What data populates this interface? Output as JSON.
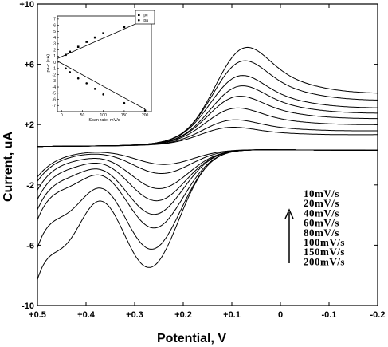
{
  "chart_data": [
    {
      "type": "line",
      "xlabel": "Potential, V",
      "ylabel": "Current, uA",
      "xlim": [
        0.5,
        -0.2
      ],
      "ylim": [
        -10,
        10
      ],
      "x_ticks": [
        {
          "value": 0.5,
          "label": "+0.5"
        },
        {
          "value": 0.4,
          "label": "+0.4"
        },
        {
          "value": 0.3,
          "label": "+0.3"
        },
        {
          "value": 0.2,
          "label": "+0.2"
        },
        {
          "value": 0.1,
          "label": "+0.1"
        },
        {
          "value": 0.0,
          "label": "0"
        },
        {
          "value": -0.1,
          "label": "-0.1"
        },
        {
          "value": -0.2,
          "label": "-0.2"
        }
      ],
      "y_ticks": [
        {
          "value": 10,
          "label": "+10"
        },
        {
          "value": 6,
          "label": "+6"
        },
        {
          "value": 2,
          "label": "+2"
        },
        {
          "value": -2,
          "label": "-2"
        },
        {
          "value": -6,
          "label": "-6"
        },
        {
          "value": -10,
          "label": "-10"
        }
      ],
      "grid": false,
      "annotation_labels": [
        "10mV/s",
        "20mV/s",
        "40mV/s",
        "60mV/s",
        "80mV/s",
        "100mV/s",
        "150mV/s",
        "200mV/s"
      ],
      "arrow_direction": "up",
      "curve_params": {
        "x": [
          0.5,
          0.45,
          0.4,
          0.35,
          0.3,
          0.25,
          0.2,
          0.15,
          0.1,
          0.05,
          0.0,
          -0.05,
          -0.1,
          -0.15,
          -0.2
        ],
        "scan_rates": [
          10,
          20,
          40,
          60,
          80,
          100,
          150,
          200
        ],
        "cathodic_peak_current": [
          1.2,
          1.7,
          2.5,
          3.3,
          4.0,
          4.7,
          5.7,
          6.6
        ],
        "cathodic_peak_potential": [
          0.11,
          0.105,
          0.1,
          0.095,
          0.09,
          0.09,
          0.085,
          0.08
        ],
        "anodic_peak_current": [
          -1.0,
          -1.6,
          -2.6,
          -3.4,
          -4.3,
          -5.2,
          -6.6,
          -7.8
        ],
        "anodic_peak_potential": [
          0.24,
          0.245,
          0.25,
          0.255,
          0.26,
          0.26,
          0.265,
          0.27
        ]
      }
    },
    {
      "type": "scatter",
      "xlabel": "Scan rate, mV/s",
      "ylabel": "Ipa-c (uA)",
      "xlim": [
        -10,
        215
      ],
      "ylim": [
        -8,
        7.5
      ],
      "x_ticks": [
        0,
        50,
        100,
        150,
        200
      ],
      "y_ticks": [
        7,
        6,
        5,
        4,
        3,
        2,
        1,
        0,
        -1,
        -2,
        -3,
        -4,
        -5,
        -6,
        -7
      ],
      "legend": {
        "position": "top-right"
      },
      "series": [
        {
          "name": "Ipc",
          "marker": "square",
          "x": [
            10,
            20,
            40,
            60,
            80,
            100,
            150,
            200
          ],
          "y": [
            1.2,
            1.7,
            2.5,
            3.3,
            4.0,
            4.7,
            5.7,
            6.6
          ]
        },
        {
          "name": "Ipa",
          "marker": "circle",
          "x": [
            10,
            20,
            40,
            60,
            80,
            100,
            150,
            200
          ],
          "y": [
            -1.0,
            -1.6,
            -2.6,
            -3.4,
            -4.3,
            -5.2,
            -6.6,
            -7.8
          ]
        }
      ],
      "fit_lines": [
        {
          "series": "Ipc",
          "x": [
            -10,
            200
          ],
          "y": [
            0.6,
            6.9
          ]
        },
        {
          "series": "Ipa",
          "x": [
            -10,
            200
          ],
          "y": [
            0.2,
            -7.6
          ]
        }
      ]
    }
  ]
}
